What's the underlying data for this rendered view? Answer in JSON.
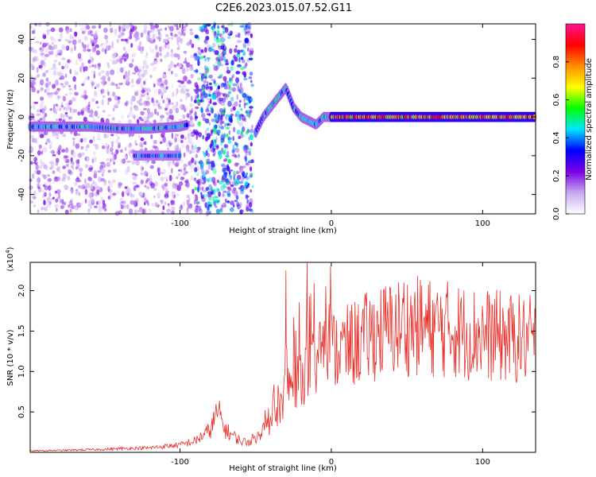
{
  "title": "C2E6.2023.015.07.52.G11",
  "chart_data": [
    {
      "type": "heatmap",
      "xlabel": "Height of straight line (km)",
      "ylabel": "Frequency (Hz)",
      "xlim": [
        -199,
        135
      ],
      "ylim": [
        -50,
        48
      ],
      "x_ticks": [
        -100,
        0,
        100
      ],
      "y_ticks": [
        -40,
        -20,
        0,
        20,
        40
      ],
      "grid": false,
      "colorbar": {
        "label": "Normalized spectral amplitude",
        "range": [
          0.0,
          1.0
        ],
        "ticks": [
          0.0,
          0.2,
          0.4,
          0.6,
          0.8
        ],
        "colors": [
          "#ffffff",
          "#c8a8f0",
          "#7a00e6",
          "#0000ff",
          "#00e5ff",
          "#00ff00",
          "#ffff00",
          "#ff8c00",
          "#ff0000",
          "#ff1493"
        ]
      },
      "ridges": [
        {
          "x": [
            -199,
            -180,
            -160,
            -140,
            -120,
            -100,
            -95
          ],
          "y": [
            -5,
            -5,
            -5,
            -6,
            -6,
            -5,
            -4
          ],
          "amp": 0.45
        },
        {
          "x": [
            -130,
            -120,
            -110,
            -100
          ],
          "y": [
            -20,
            -20,
            -20,
            -20
          ],
          "amp": 0.4
        },
        {
          "x": [
            -50,
            -45,
            -40,
            -35,
            -30,
            -25,
            -20,
            -15,
            -10,
            -5,
            0
          ],
          "y": [
            -8,
            0,
            5,
            10,
            15,
            5,
            0,
            -2,
            -4,
            0,
            0
          ],
          "amp": 0.45
        },
        {
          "x": [
            0,
            20,
            40,
            60,
            80,
            100,
            120,
            135
          ],
          "y": [
            0,
            0,
            0,
            0,
            0,
            0,
            0,
            0
          ],
          "amp": 0.85
        }
      ],
      "noise_regions": [
        {
          "x": [
            -199,
            -90
          ],
          "y": [
            -50,
            48
          ],
          "level": 0.15
        },
        {
          "x": [
            -90,
            -52
          ],
          "y": [
            -50,
            48
          ],
          "level": 0.35
        }
      ]
    },
    {
      "type": "line",
      "xlabel": "Height of straight line (km)",
      "ylabel": "SNR (10 * v/v)",
      "y_multiplier": "(x10^4)",
      "xlim": [
        -199,
        135
      ],
      "ylim": [
        0.0,
        2.35
      ],
      "x_ticks": [
        -100,
        0,
        100
      ],
      "y_ticks": [
        0.5,
        1.0,
        1.5,
        2.0
      ],
      "grid": false,
      "color": "#e8302a",
      "envelope": {
        "x": [
          -199,
          -170,
          -150,
          -140,
          -120,
          -110,
          -100,
          -90,
          -80,
          -75,
          -70,
          -60,
          -55,
          -50,
          -45,
          -40,
          -35,
          -32,
          -30,
          -25,
          -20,
          -15,
          -10,
          -5,
          0,
          10,
          20,
          30,
          40,
          50,
          60,
          70,
          80,
          90,
          100,
          110,
          120,
          135
        ],
        "y": [
          0.02,
          0.03,
          0.04,
          0.05,
          0.06,
          0.08,
          0.1,
          0.15,
          0.3,
          0.55,
          0.3,
          0.15,
          0.14,
          0.2,
          0.3,
          0.4,
          0.55,
          0.75,
          0.85,
          0.95,
          1.05,
          1.1,
          1.2,
          1.3,
          1.35,
          1.4,
          1.5,
          1.6,
          1.65,
          1.7,
          1.68,
          1.66,
          1.64,
          1.6,
          1.58,
          1.55,
          1.52,
          1.5
        ]
      },
      "spikes": [
        {
          "x": -30,
          "y": 2.25
        },
        {
          "x": -16,
          "y": 2.35
        },
        {
          "x": 48,
          "y": 2.1
        }
      ]
    }
  ]
}
